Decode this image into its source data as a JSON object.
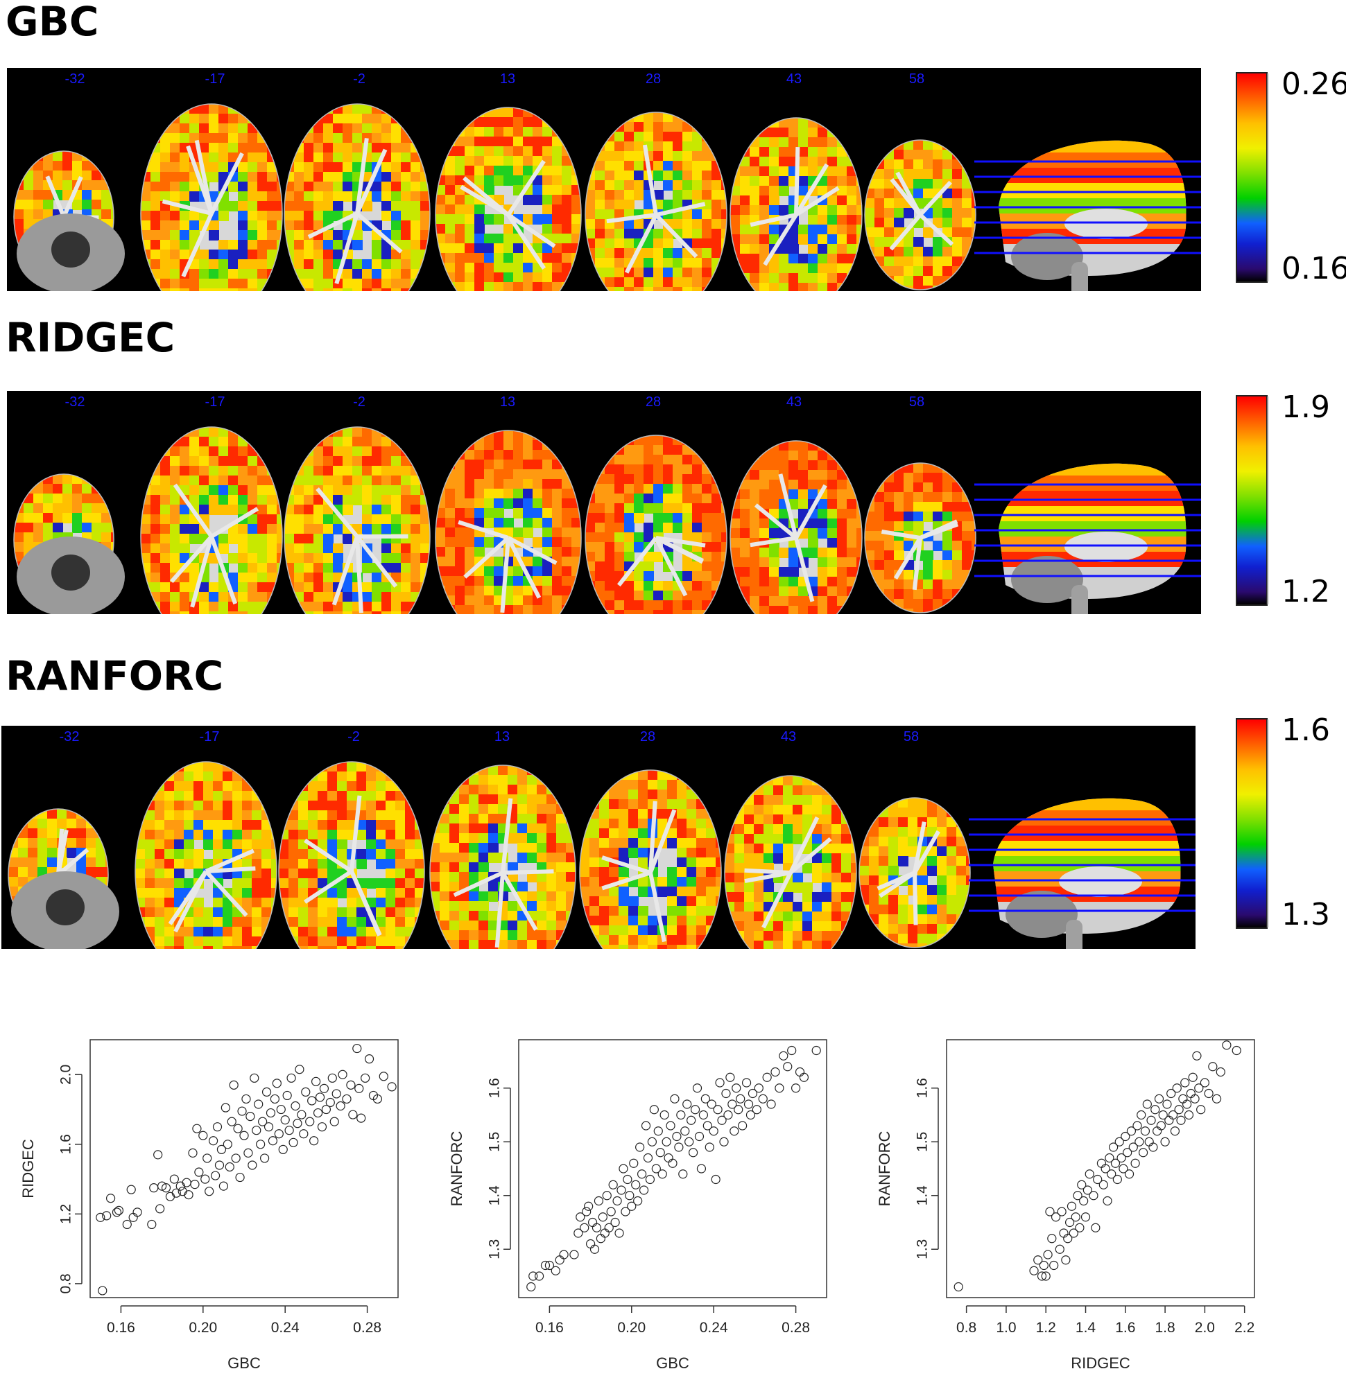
{
  "sections": [
    {
      "title": "GBC",
      "slice_labels": [
        "-32",
        "-17",
        "-2",
        "13",
        "28",
        "43",
        "58"
      ],
      "colorbar": {
        "max": "0.26",
        "min": "0.16"
      }
    },
    {
      "title": "RIDGEC",
      "slice_labels": [
        "-32",
        "-17",
        "-2",
        "13",
        "28",
        "43",
        "58"
      ],
      "colorbar": {
        "max": "1.9",
        "min": "1.2"
      }
    },
    {
      "title": "RANFORC",
      "slice_labels": [
        "-32",
        "-17",
        "-2",
        "13",
        "28",
        "43",
        "58"
      ],
      "colorbar": {
        "max": "1.6",
        "min": "1.3"
      }
    }
  ],
  "colors": {
    "panel_background": "#000000",
    "slice_label": "#1a1aff",
    "slice_lines": "#1010ff",
    "scatter_marker": "#222222"
  },
  "chart_data": [
    {
      "type": "scatter",
      "xlabel": "GBC",
      "ylabel": "RIDGEC",
      "xlim": [
        0.145,
        0.295
      ],
      "ylim": [
        0.72,
        2.2
      ],
      "xticks": [
        "0.16",
        "0.20",
        "0.24",
        "0.28"
      ],
      "yticks": [
        "0.8",
        "1.2",
        "1.6",
        "2.0"
      ],
      "xtick_values": [
        0.16,
        0.2,
        0.24,
        0.28
      ],
      "ytick_values": [
        0.8,
        1.2,
        1.6,
        2.0
      ],
      "points": [
        [
          0.151,
          0.76
        ],
        [
          0.15,
          1.18
        ],
        [
          0.153,
          1.19
        ],
        [
          0.155,
          1.29
        ],
        [
          0.158,
          1.21
        ],
        [
          0.159,
          1.22
        ],
        [
          0.163,
          1.14
        ],
        [
          0.165,
          1.34
        ],
        [
          0.166,
          1.18
        ],
        [
          0.168,
          1.21
        ],
        [
          0.175,
          1.14
        ],
        [
          0.176,
          1.35
        ],
        [
          0.178,
          1.54
        ],
        [
          0.179,
          1.23
        ],
        [
          0.18,
          1.36
        ],
        [
          0.182,
          1.35
        ],
        [
          0.184,
          1.3
        ],
        [
          0.186,
          1.4
        ],
        [
          0.187,
          1.32
        ],
        [
          0.189,
          1.36
        ],
        [
          0.19,
          1.33
        ],
        [
          0.192,
          1.38
        ],
        [
          0.193,
          1.31
        ],
        [
          0.195,
          1.55
        ],
        [
          0.196,
          1.37
        ],
        [
          0.197,
          1.69
        ],
        [
          0.198,
          1.44
        ],
        [
          0.2,
          1.65
        ],
        [
          0.201,
          1.4
        ],
        [
          0.202,
          1.52
        ],
        [
          0.203,
          1.33
        ],
        [
          0.205,
          1.62
        ],
        [
          0.206,
          1.42
        ],
        [
          0.207,
          1.7
        ],
        [
          0.208,
          1.48
        ],
        [
          0.209,
          1.57
        ],
        [
          0.21,
          1.36
        ],
        [
          0.211,
          1.81
        ],
        [
          0.212,
          1.6
        ],
        [
          0.213,
          1.47
        ],
        [
          0.214,
          1.73
        ],
        [
          0.215,
          1.94
        ],
        [
          0.216,
          1.52
        ],
        [
          0.217,
          1.69
        ],
        [
          0.218,
          1.41
        ],
        [
          0.219,
          1.79
        ],
        [
          0.22,
          1.65
        ],
        [
          0.221,
          1.86
        ],
        [
          0.222,
          1.55
        ],
        [
          0.223,
          1.76
        ],
        [
          0.224,
          1.48
        ],
        [
          0.225,
          1.98
        ],
        [
          0.226,
          1.68
        ],
        [
          0.227,
          1.83
        ],
        [
          0.228,
          1.6
        ],
        [
          0.229,
          1.73
        ],
        [
          0.23,
          1.52
        ],
        [
          0.231,
          1.9
        ],
        [
          0.232,
          1.7
        ],
        [
          0.233,
          1.78
        ],
        [
          0.234,
          1.62
        ],
        [
          0.235,
          1.86
        ],
        [
          0.236,
          1.95
        ],
        [
          0.237,
          1.66
        ],
        [
          0.238,
          1.8
        ],
        [
          0.239,
          1.57
        ],
        [
          0.24,
          1.74
        ],
        [
          0.241,
          1.88
        ],
        [
          0.242,
          1.68
        ],
        [
          0.243,
          1.98
        ],
        [
          0.244,
          1.61
        ],
        [
          0.245,
          1.82
        ],
        [
          0.246,
          1.72
        ],
        [
          0.247,
          2.03
        ],
        [
          0.248,
          1.77
        ],
        [
          0.249,
          1.66
        ],
        [
          0.25,
          1.9
        ],
        [
          0.252,
          1.73
        ],
        [
          0.253,
          1.85
        ],
        [
          0.254,
          1.62
        ],
        [
          0.255,
          1.96
        ],
        [
          0.256,
          1.78
        ],
        [
          0.257,
          1.87
        ],
        [
          0.258,
          1.7
        ],
        [
          0.259,
          1.92
        ],
        [
          0.26,
          1.8
        ],
        [
          0.262,
          1.84
        ],
        [
          0.263,
          1.98
        ],
        [
          0.264,
          1.73
        ],
        [
          0.265,
          1.89
        ],
        [
          0.267,
          1.82
        ],
        [
          0.268,
          2.0
        ],
        [
          0.27,
          1.86
        ],
        [
          0.272,
          1.94
        ],
        [
          0.273,
          1.77
        ],
        [
          0.275,
          2.15
        ],
        [
          0.276,
          1.92
        ],
        [
          0.277,
          1.75
        ],
        [
          0.279,
          1.98
        ],
        [
          0.281,
          2.09
        ],
        [
          0.283,
          1.88
        ],
        [
          0.285,
          1.86
        ],
        [
          0.288,
          1.99
        ],
        [
          0.292,
          1.93
        ]
      ]
    },
    {
      "type": "scatter",
      "xlabel": "GBC",
      "ylabel": "RANFORC",
      "xlim": [
        0.145,
        0.295
      ],
      "ylim": [
        1.21,
        1.69
      ],
      "xticks": [
        "0.16",
        "0.20",
        "0.24",
        "0.28"
      ],
      "yticks": [
        "1.3",
        "1.4",
        "1.5",
        "1.6"
      ],
      "xtick_values": [
        0.16,
        0.2,
        0.24,
        0.28
      ],
      "ytick_values": [
        1.3,
        1.4,
        1.5,
        1.6
      ],
      "points": [
        [
          0.151,
          1.23
        ],
        [
          0.152,
          1.25
        ],
        [
          0.155,
          1.25
        ],
        [
          0.158,
          1.27
        ],
        [
          0.16,
          1.27
        ],
        [
          0.163,
          1.26
        ],
        [
          0.165,
          1.28
        ],
        [
          0.167,
          1.29
        ],
        [
          0.172,
          1.29
        ],
        [
          0.174,
          1.33
        ],
        [
          0.175,
          1.36
        ],
        [
          0.177,
          1.34
        ],
        [
          0.178,
          1.37
        ],
        [
          0.179,
          1.38
        ],
        [
          0.18,
          1.31
        ],
        [
          0.181,
          1.35
        ],
        [
          0.182,
          1.3
        ],
        [
          0.183,
          1.34
        ],
        [
          0.184,
          1.39
        ],
        [
          0.185,
          1.32
        ],
        [
          0.186,
          1.36
        ],
        [
          0.187,
          1.33
        ],
        [
          0.188,
          1.4
        ],
        [
          0.189,
          1.34
        ],
        [
          0.19,
          1.37
        ],
        [
          0.191,
          1.42
        ],
        [
          0.192,
          1.35
        ],
        [
          0.193,
          1.39
        ],
        [
          0.194,
          1.33
        ],
        [
          0.195,
          1.41
        ],
        [
          0.196,
          1.45
        ],
        [
          0.197,
          1.37
        ],
        [
          0.198,
          1.43
        ],
        [
          0.199,
          1.4
        ],
        [
          0.2,
          1.38
        ],
        [
          0.201,
          1.46
        ],
        [
          0.202,
          1.42
        ],
        [
          0.203,
          1.39
        ],
        [
          0.204,
          1.49
        ],
        [
          0.205,
          1.44
        ],
        [
          0.206,
          1.41
        ],
        [
          0.207,
          1.53
        ],
        [
          0.208,
          1.47
        ],
        [
          0.209,
          1.43
        ],
        [
          0.21,
          1.5
        ],
        [
          0.211,
          1.56
        ],
        [
          0.212,
          1.45
        ],
        [
          0.213,
          1.52
        ],
        [
          0.214,
          1.48
        ],
        [
          0.215,
          1.44
        ],
        [
          0.216,
          1.55
        ],
        [
          0.217,
          1.5
        ],
        [
          0.218,
          1.47
        ],
        [
          0.219,
          1.53
        ],
        [
          0.22,
          1.46
        ],
        [
          0.221,
          1.58
        ],
        [
          0.222,
          1.51
        ],
        [
          0.223,
          1.49
        ],
        [
          0.224,
          1.55
        ],
        [
          0.225,
          1.44
        ],
        [
          0.226,
          1.52
        ],
        [
          0.227,
          1.57
        ],
        [
          0.228,
          1.5
        ],
        [
          0.229,
          1.54
        ],
        [
          0.23,
          1.48
        ],
        [
          0.231,
          1.56
        ],
        [
          0.232,
          1.6
        ],
        [
          0.233,
          1.51
        ],
        [
          0.234,
          1.45
        ],
        [
          0.235,
          1.55
        ],
        [
          0.236,
          1.58
        ],
        [
          0.237,
          1.53
        ],
        [
          0.238,
          1.49
        ],
        [
          0.239,
          1.57
        ],
        [
          0.24,
          1.52
        ],
        [
          0.241,
          1.43
        ],
        [
          0.242,
          1.56
        ],
        [
          0.243,
          1.61
        ],
        [
          0.244,
          1.54
        ],
        [
          0.245,
          1.5
        ],
        [
          0.246,
          1.59
        ],
        [
          0.247,
          1.55
        ],
        [
          0.248,
          1.62
        ],
        [
          0.249,
          1.57
        ],
        [
          0.25,
          1.52
        ],
        [
          0.251,
          1.6
        ],
        [
          0.252,
          1.56
        ],
        [
          0.253,
          1.58
        ],
        [
          0.254,
          1.53
        ],
        [
          0.256,
          1.61
        ],
        [
          0.257,
          1.57
        ],
        [
          0.258,
          1.55
        ],
        [
          0.259,
          1.59
        ],
        [
          0.261,
          1.56
        ],
        [
          0.262,
          1.6
        ],
        [
          0.264,
          1.58
        ],
        [
          0.266,
          1.62
        ],
        [
          0.268,
          1.57
        ],
        [
          0.27,
          1.63
        ],
        [
          0.272,
          1.6
        ],
        [
          0.274,
          1.66
        ],
        [
          0.276,
          1.64
        ],
        [
          0.278,
          1.67
        ],
        [
          0.28,
          1.6
        ],
        [
          0.282,
          1.63
        ],
        [
          0.284,
          1.62
        ],
        [
          0.29,
          1.67
        ]
      ]
    },
    {
      "type": "scatter",
      "xlabel": "RIDGEC",
      "ylabel": "RANFORC",
      "xlim": [
        0.7,
        2.25
      ],
      "ylim": [
        1.21,
        1.69
      ],
      "xticks": [
        "0.8",
        "1.0",
        "1.2",
        "1.4",
        "1.6",
        "1.8",
        "2.0",
        "2.2"
      ],
      "yticks": [
        "1.3",
        "1.4",
        "1.5",
        "1.6"
      ],
      "xtick_values": [
        0.8,
        1.0,
        1.2,
        1.4,
        1.6,
        1.8,
        2.0,
        2.2
      ],
      "ytick_values": [
        1.3,
        1.4,
        1.5,
        1.6
      ],
      "points": [
        [
          0.76,
          1.23
        ],
        [
          1.14,
          1.26
        ],
        [
          1.16,
          1.28
        ],
        [
          1.18,
          1.25
        ],
        [
          1.19,
          1.27
        ],
        [
          1.2,
          1.25
        ],
        [
          1.21,
          1.29
        ],
        [
          1.22,
          1.37
        ],
        [
          1.23,
          1.32
        ],
        [
          1.24,
          1.27
        ],
        [
          1.25,
          1.36
        ],
        [
          1.27,
          1.3
        ],
        [
          1.28,
          1.37
        ],
        [
          1.29,
          1.33
        ],
        [
          1.3,
          1.28
        ],
        [
          1.31,
          1.32
        ],
        [
          1.32,
          1.35
        ],
        [
          1.33,
          1.38
        ],
        [
          1.34,
          1.33
        ],
        [
          1.35,
          1.36
        ],
        [
          1.36,
          1.4
        ],
        [
          1.37,
          1.34
        ],
        [
          1.38,
          1.42
        ],
        [
          1.39,
          1.39
        ],
        [
          1.4,
          1.36
        ],
        [
          1.41,
          1.41
        ],
        [
          1.42,
          1.44
        ],
        [
          1.44,
          1.4
        ],
        [
          1.45,
          1.34
        ],
        [
          1.46,
          1.43
        ],
        [
          1.48,
          1.46
        ],
        [
          1.49,
          1.42
        ],
        [
          1.5,
          1.45
        ],
        [
          1.51,
          1.39
        ],
        [
          1.52,
          1.47
        ],
        [
          1.53,
          1.44
        ],
        [
          1.54,
          1.49
        ],
        [
          1.55,
          1.46
        ],
        [
          1.56,
          1.43
        ],
        [
          1.57,
          1.5
        ],
        [
          1.58,
          1.47
        ],
        [
          1.59,
          1.45
        ],
        [
          1.6,
          1.51
        ],
        [
          1.61,
          1.48
        ],
        [
          1.62,
          1.44
        ],
        [
          1.63,
          1.52
        ],
        [
          1.64,
          1.49
        ],
        [
          1.65,
          1.46
        ],
        [
          1.66,
          1.53
        ],
        [
          1.67,
          1.5
        ],
        [
          1.68,
          1.55
        ],
        [
          1.69,
          1.48
        ],
        [
          1.7,
          1.52
        ],
        [
          1.71,
          1.57
        ],
        [
          1.72,
          1.5
        ],
        [
          1.73,
          1.54
        ],
        [
          1.74,
          1.49
        ],
        [
          1.75,
          1.56
        ],
        [
          1.76,
          1.52
        ],
        [
          1.77,
          1.58
        ],
        [
          1.78,
          1.53
        ],
        [
          1.79,
          1.55
        ],
        [
          1.8,
          1.5
        ],
        [
          1.81,
          1.57
        ],
        [
          1.82,
          1.54
        ],
        [
          1.83,
          1.59
        ],
        [
          1.84,
          1.55
        ],
        [
          1.85,
          1.52
        ],
        [
          1.86,
          1.6
        ],
        [
          1.87,
          1.56
        ],
        [
          1.88,
          1.54
        ],
        [
          1.89,
          1.58
        ],
        [
          1.9,
          1.61
        ],
        [
          1.91,
          1.57
        ],
        [
          1.92,
          1.55
        ],
        [
          1.93,
          1.59
        ],
        [
          1.94,
          1.62
        ],
        [
          1.95,
          1.58
        ],
        [
          1.96,
          1.66
        ],
        [
          1.97,
          1.6
        ],
        [
          1.98,
          1.56
        ],
        [
          2.0,
          1.61
        ],
        [
          2.02,
          1.59
        ],
        [
          2.04,
          1.64
        ],
        [
          2.06,
          1.58
        ],
        [
          2.08,
          1.63
        ],
        [
          2.11,
          1.68
        ],
        [
          2.16,
          1.67
        ]
      ]
    }
  ]
}
